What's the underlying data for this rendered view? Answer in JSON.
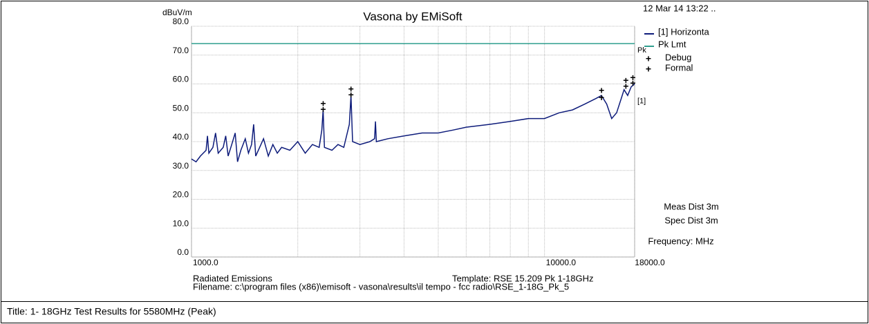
{
  "chart_data": {
    "type": "line",
    "title": "Vasona by EMiSoft",
    "timestamp": "12 Mar 14 13:22 ..",
    "ylabel": "dBuV/m",
    "xscale": "log",
    "grid": true,
    "xlim": [
      1000,
      18000
    ],
    "ylim": [
      0,
      80
    ],
    "xticks": [
      {
        "value": 1000,
        "label": "1000.0"
      },
      {
        "value": 10000,
        "label": "10000.0"
      },
      {
        "value": 18000,
        "label": "18000.0"
      }
    ],
    "xminor_ticks": [
      2000,
      3000,
      4000,
      5000,
      6000,
      7000,
      8000,
      9000
    ],
    "yticks": [
      {
        "value": 0,
        "label": "0.0"
      },
      {
        "value": 10,
        "label": "10.0"
      },
      {
        "value": 20,
        "label": "20.0"
      },
      {
        "value": 30,
        "label": "30.0"
      },
      {
        "value": 40,
        "label": "40.0"
      },
      {
        "value": 50,
        "label": "50.0"
      },
      {
        "value": 60,
        "label": "60.0"
      },
      {
        "value": 70,
        "label": "70.0"
      },
      {
        "value": 80,
        "label": "80.0"
      }
    ],
    "series": [
      {
        "name": "[1] Horizonta",
        "color": "#0d1b7a",
        "kind": "line",
        "end_label": "[1]",
        "x": [
          1000,
          1030,
          1060,
          1100,
          1110,
          1120,
          1150,
          1170,
          1190,
          1230,
          1250,
          1270,
          1300,
          1330,
          1350,
          1380,
          1420,
          1450,
          1480,
          1500,
          1520,
          1560,
          1600,
          1650,
          1700,
          1750,
          1800,
          1900,
          2000,
          2100,
          2200,
          2300,
          2340,
          2360,
          2380,
          2500,
          2600,
          2700,
          2800,
          2830,
          2860,
          3000,
          3200,
          3300,
          3320,
          3340,
          3600,
          4000,
          4500,
          5000,
          5500,
          6000,
          7000,
          8000,
          9000,
          10000,
          11000,
          12000,
          13000,
          14000,
          14500,
          15000,
          15500,
          16000,
          16500,
          16800,
          17200,
          17600,
          18000
        ],
        "values": [
          34,
          33,
          35,
          37,
          42,
          36,
          38,
          43,
          36,
          38,
          42,
          35,
          39,
          43,
          33,
          37,
          41,
          36,
          39,
          46,
          35,
          38,
          41,
          35,
          39,
          36,
          38,
          37,
          40,
          36,
          39,
          38,
          44,
          51,
          38,
          37,
          39,
          38,
          46,
          56,
          40,
          39,
          40,
          41,
          47,
          40,
          41,
          42,
          43,
          43,
          44,
          45,
          46,
          47,
          48,
          48,
          50,
          51,
          53,
          55,
          56,
          53,
          48,
          50,
          55,
          58,
          56,
          59,
          60
        ]
      },
      {
        "name": "Pk Lmt",
        "color": "#2e9e8e",
        "kind": "line",
        "end_label": "Pk",
        "x": [
          1000,
          18000
        ],
        "values": [
          74,
          74
        ]
      },
      {
        "name": "Debug",
        "color": "#c0392b",
        "kind": "marker",
        "x": [
          2360,
          2830,
          14500,
          17000,
          17800
        ],
        "values": [
          53,
          58,
          57.5,
          61,
          62
        ]
      },
      {
        "name": "Formal",
        "color": "#000000",
        "kind": "marker",
        "x": [
          2360,
          2830,
          14500,
          17000,
          17800
        ],
        "values": [
          51,
          56,
          55,
          59,
          60
        ]
      }
    ],
    "notes": [
      "Meas Dist 3m",
      "Spec Dist 3m",
      "Frequency: MHz"
    ],
    "footer": [
      "Radiated Emissions",
      "Template: RSE 15.209 Pk 1-18GHz",
      "Filename: c:\\program files (x86)\\emisoft - vasona\\results\\il tempo - fcc radio\\RSE_1-18G_Pk_5"
    ]
  },
  "caption": "Title: 1- 18GHz Test Results for 5580MHz (Peak)"
}
